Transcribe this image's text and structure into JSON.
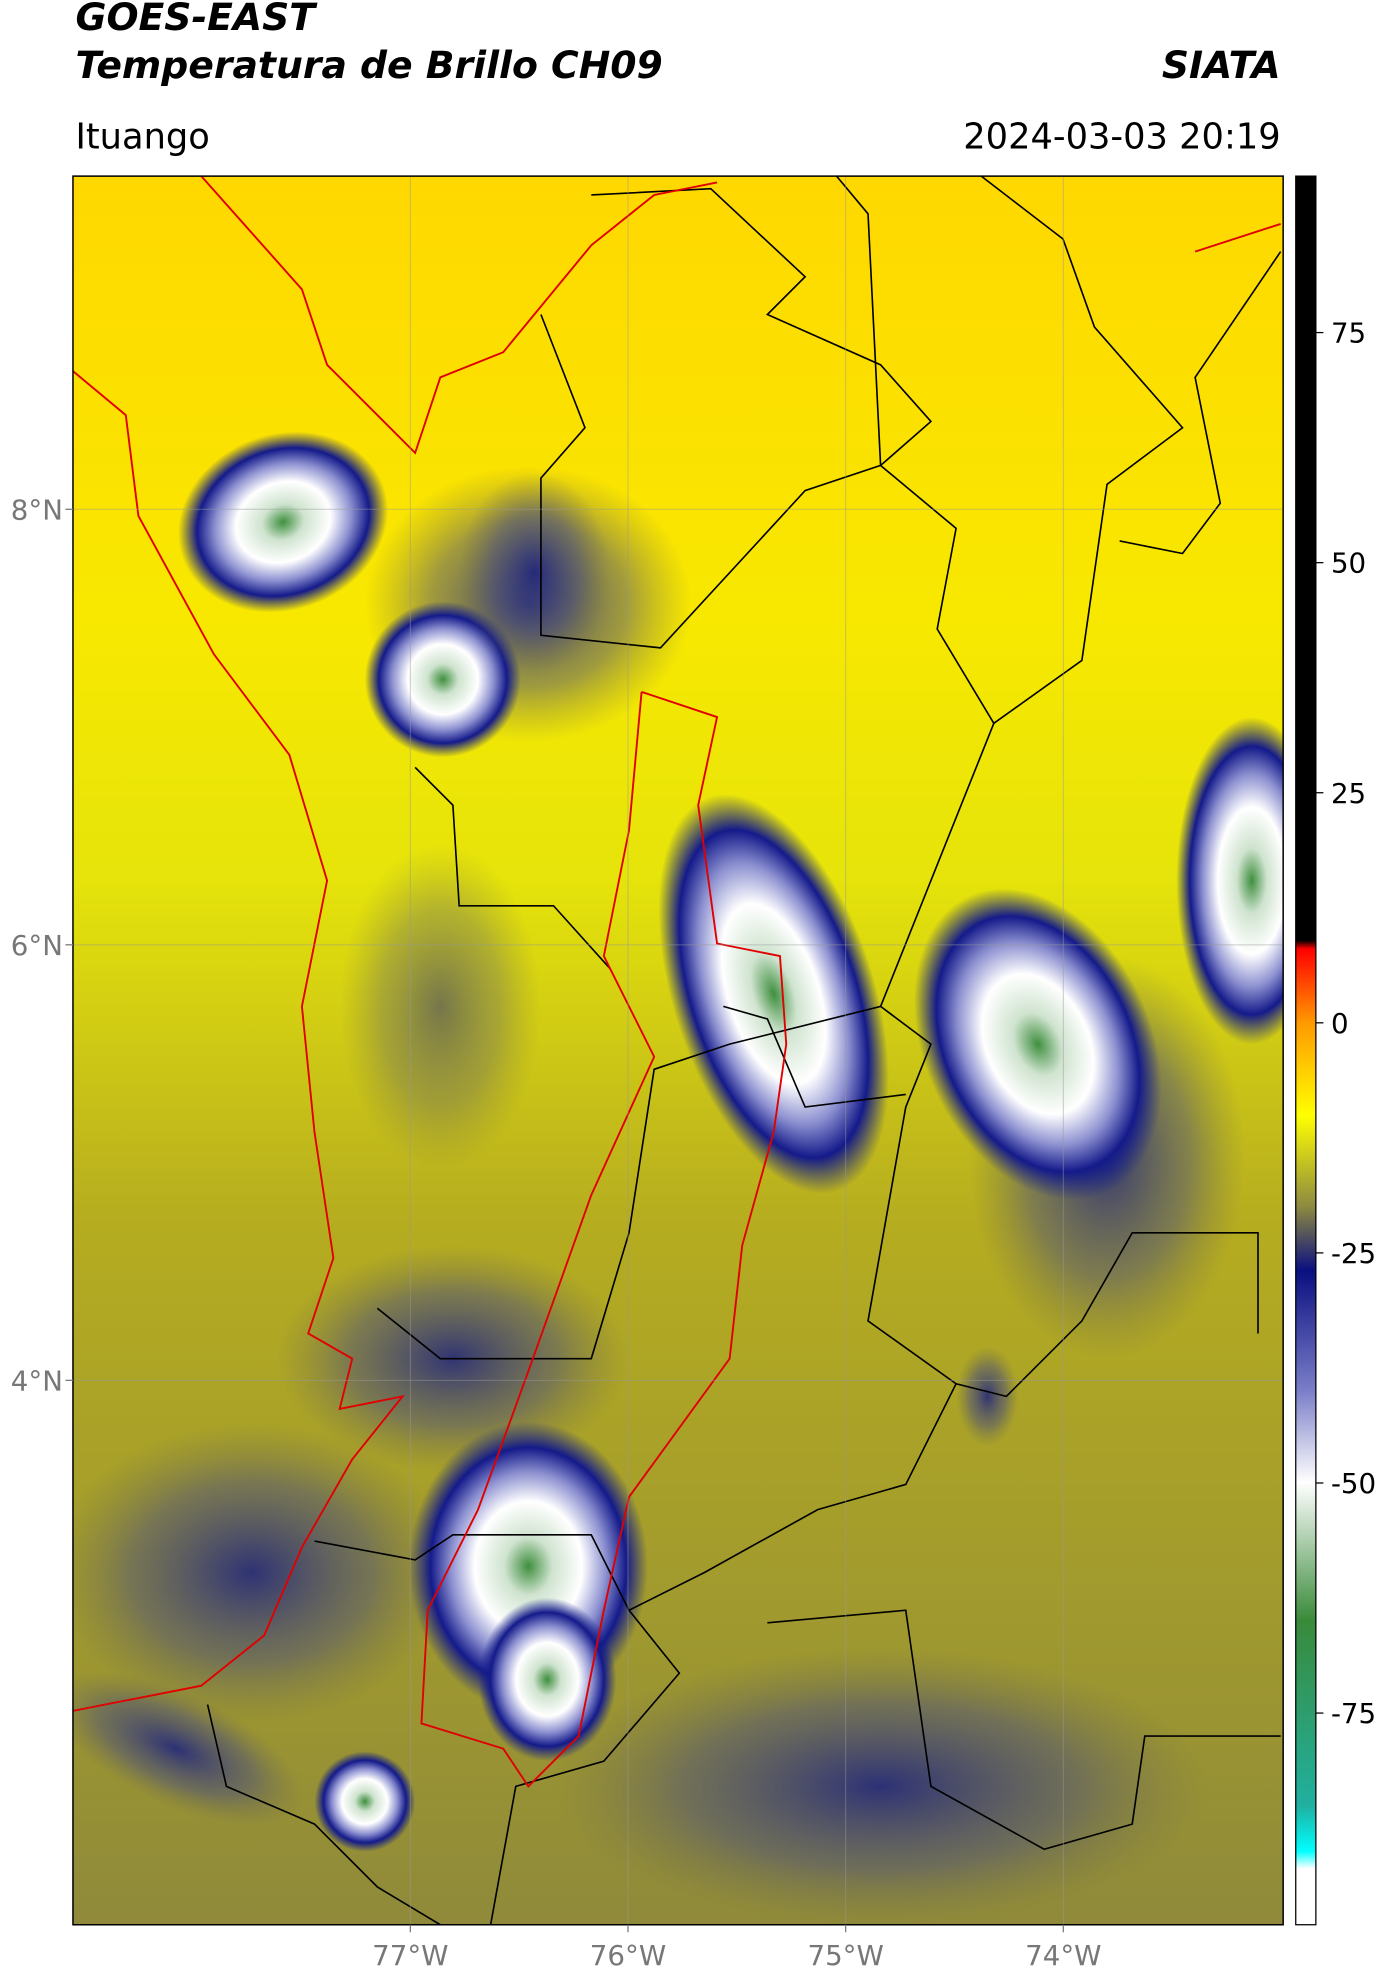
{
  "header": {
    "title": "GOES-EAST",
    "subtitle": "Temperatura de Brillo CH09",
    "brand": "SIATA",
    "location": "Ituango",
    "timestamp": "2024-03-03 20:19"
  },
  "map": {
    "xlim": [
      -78.55,
      -72.99
    ],
    "ylim": [
      1.5,
      9.53
    ],
    "xticks": [
      {
        "value": -77,
        "label": "77°W"
      },
      {
        "value": -76,
        "label": "76°W"
      },
      {
        "value": -75,
        "label": "75°W"
      },
      {
        "value": -74,
        "label": "74°W"
      }
    ],
    "yticks": [
      {
        "value": 4,
        "label": "4°N"
      },
      {
        "value": 6,
        "label": "6°N"
      },
      {
        "value": 8,
        "label": "8°N"
      }
    ],
    "grid": true
  },
  "colorbar": {
    "lim": [
      -98,
      92
    ],
    "ticks": [
      -75,
      -50,
      -25,
      0,
      25,
      50,
      75
    ]
  }
}
